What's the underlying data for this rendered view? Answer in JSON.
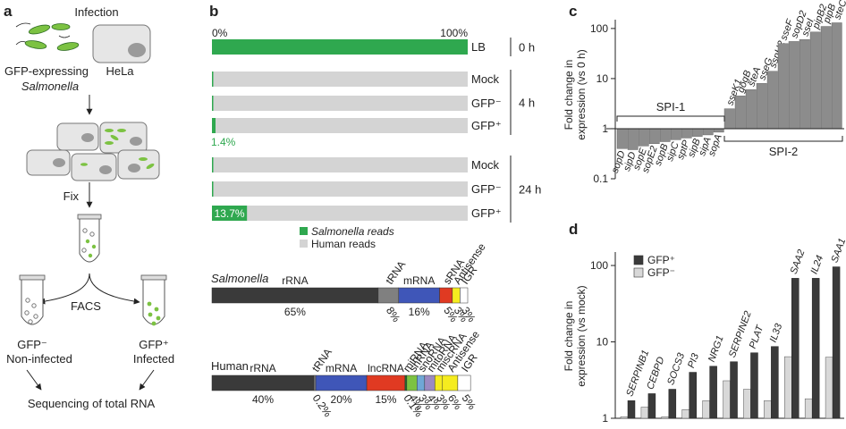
{
  "panel_a": {
    "label": "a",
    "infection": "Infection",
    "gfp_salmonella_line1": "GFP-expressing",
    "gfp_salmonella_line2": "Salmonella",
    "hela": "HeLa",
    "fix": "Fix",
    "facs": "FACS",
    "gfp_neg": "GFP⁻",
    "non_infected": "Non-infected",
    "gfp_pos": "GFP⁺",
    "infected": "Infected",
    "sequencing": "Sequencing of total RNA"
  },
  "panel_b": {
    "label": "b",
    "axis_start": "0%",
    "axis_end": "100%",
    "rows": [
      {
        "label": "LB",
        "salmonella_pct": 100,
        "group": "0 h"
      },
      {
        "label": "Mock",
        "salmonella_pct": 0.3,
        "group": "4 h"
      },
      {
        "label": "GFP⁻",
        "salmonella_pct": 0.3,
        "group": "4 h"
      },
      {
        "label": "GFP⁺",
        "salmonella_pct": 1.4,
        "group": "4 h",
        "annotation": "1.4%"
      },
      {
        "label": "Mock",
        "salmonella_pct": 0.3,
        "group": "24 h"
      },
      {
        "label": "GFP⁻",
        "salmonella_pct": 0.3,
        "group": "24 h"
      },
      {
        "label": "GFP⁺",
        "salmonella_pct": 13.7,
        "group": "24 h",
        "annotation": "13.7%"
      }
    ],
    "groups": [
      "0 h",
      "4 h",
      "24 h"
    ],
    "legend": {
      "salmonella": "Salmonella reads",
      "human": "Human reads"
    },
    "colors": {
      "salmonella": "#2fa84f",
      "human": "#d4d4d4"
    },
    "salmonella_title": "Salmonella",
    "salmonella_segments": [
      {
        "name": "rRNA",
        "pct": 65,
        "pct_label": "65%",
        "color": "#3a3a3a"
      },
      {
        "name": "tRNA",
        "pct": 8,
        "pct_label": "8%",
        "color": "#808080"
      },
      {
        "name": "mRNA",
        "pct": 16,
        "pct_label": "16%",
        "color": "#3f56b8"
      },
      {
        "name": "sRNA",
        "pct": 5,
        "pct_label": "5%",
        "color": "#e03a22"
      },
      {
        "name": "Antisense",
        "pct": 3,
        "pct_label": "3%",
        "color": "#f5ec1f"
      },
      {
        "name": "IGR",
        "pct": 3,
        "pct_label": "3%",
        "color": "#ffffff"
      }
    ],
    "human_title": "Human",
    "human_segments": [
      {
        "name": "rRNA",
        "pct": 40,
        "pct_label": "40%",
        "color": "#3a3a3a"
      },
      {
        "name": "tRNA",
        "pct": 0.2,
        "pct_label": "0.2%",
        "color": "#808080"
      },
      {
        "name": "mRNA",
        "pct": 20,
        "pct_label": "20%",
        "color": "#3f56b8"
      },
      {
        "name": "lncRNA",
        "pct": 15,
        "pct_label": "15%",
        "color": "#e03a22"
      },
      {
        "name": "miRNA",
        "pct": 0.1,
        "pct_label": "0.1%",
        "color": "#1f6d2b"
      },
      {
        "name": "snRNA",
        "pct": 4,
        "pct_label": "4%",
        "color": "#7cc242"
      },
      {
        "name": "snoRNA",
        "pct": 3,
        "pct_label": "3%",
        "color": "#6fa7d6"
      },
      {
        "name": "mitoRNA",
        "pct": 4,
        "pct_label": "4%",
        "color": "#9b8ac2"
      },
      {
        "name": "miscRNA",
        "pct": 3,
        "pct_label": "3%",
        "color": "#f5ec1f"
      },
      {
        "name": "Antisense",
        "pct": 6,
        "pct_label": "6%",
        "color": "#f5ec1f"
      },
      {
        "name": "IGR",
        "pct": 5,
        "pct_label": "5%",
        "color": "#ffffff"
      }
    ]
  },
  "panel_c": {
    "label": "c",
    "ylabel_line1": "Fold change in",
    "ylabel_line2": "expression (vs 0 h)",
    "yticks": [
      "100",
      "10",
      "1",
      "0.1"
    ],
    "spi1_label": "SPI-1",
    "spi2_label": "SPI-2",
    "bar_color": "#8c8c8c"
  },
  "panel_d": {
    "label": "d",
    "ylabel_line1": "Fold change in",
    "ylabel_line2": "expression (vs mock)",
    "yticks": [
      "100",
      "10",
      "1"
    ],
    "legend_pos": "GFP⁺",
    "legend_neg": "GFP⁻",
    "color_pos": "#3a3a3a",
    "color_neg": "#d8d8d8"
  },
  "chart_data": [
    {
      "type": "bar",
      "panel": "c",
      "scale": "log",
      "ylim": [
        0.1,
        150
      ],
      "ylabel": "Fold change in expression (vs 0 h)",
      "categories": [
        "sopD",
        "sipD",
        "sopE",
        "sopE2",
        "sopB",
        "sipC",
        "sptP",
        "sipB",
        "sipA",
        "sopA",
        "sseK1",
        "gogB",
        "steA",
        "sseG",
        "sspH2",
        "sseF",
        "sopD2",
        "sseI",
        "pipB2",
        "pipB",
        "steC"
      ],
      "values": [
        0.4,
        0.38,
        0.45,
        0.5,
        0.55,
        0.6,
        0.65,
        0.7,
        0.75,
        0.85,
        2.5,
        4.5,
        6,
        8,
        14,
        50,
        55,
        60,
        85,
        110,
        130
      ],
      "annotations": [
        "SPI-1",
        "SPI-2"
      ]
    },
    {
      "type": "bar",
      "panel": "d",
      "scale": "log",
      "ylim": [
        1,
        150
      ],
      "ylabel": "Fold change in expression (vs mock)",
      "categories": [
        "SERPINB1",
        "CEBPD",
        "SOCS3",
        "PI3",
        "NRG1",
        "SERPINE2",
        "PLAT",
        "IL33",
        "SAA2",
        "IL24",
        "SAA1"
      ],
      "series": [
        {
          "name": "GFP⁺",
          "values": [
            1.7,
            2.1,
            2.4,
            4,
            4.8,
            5.5,
            7.2,
            8.7,
            68,
            68,
            96
          ]
        },
        {
          "name": "GFP⁻",
          "values": [
            1.05,
            1.4,
            1.05,
            1.3,
            1.7,
            3.1,
            2.4,
            1.7,
            6.4,
            1.8,
            6.3
          ]
        }
      ],
      "legend": "top-left"
    }
  ]
}
